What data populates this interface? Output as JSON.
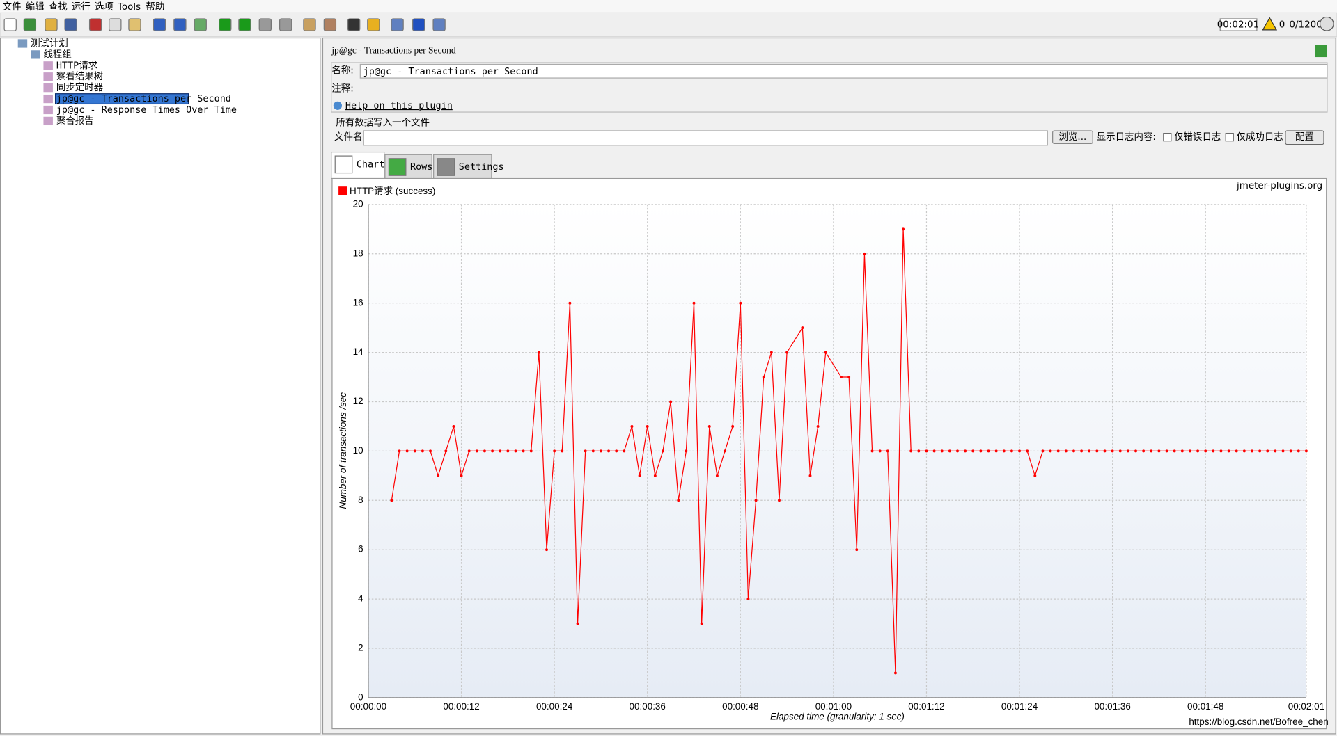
{
  "menu": [
    "文件",
    "编辑",
    "查找",
    "运行",
    "选项",
    "Tools",
    "帮助"
  ],
  "status": {
    "timer": "00:02:01",
    "warnings": "0",
    "threads": "0/1200"
  },
  "tree": [
    "测试计划",
    "线程组",
    "HTTP请求",
    "察看结果树",
    "同步定时器",
    "jp@gc - Transactions per Second",
    "jp@gc - Response Times Over Time",
    "聚合报告"
  ],
  "panel": {
    "title": "jp@gc - Transactions per Second",
    "name_label": "名称:",
    "name_value": "jp@gc - Transactions per Second",
    "comment_label": "注释:",
    "help_link": "Help on this plugin",
    "file_section": "所有数据写入一个文件",
    "file_label": "文件名",
    "browse": "浏览...",
    "log_label": "显示日志内容:",
    "errors_only": "仅错误日志",
    "success_only": "仅成功日志",
    "configure": "配置",
    "tabs": [
      "Chart",
      "Rows",
      "Settings"
    ]
  },
  "chart": {
    "type": "line",
    "watermark": "jmeter-plugins.org",
    "y_label": "Number of transactions /sec",
    "x_label": "Elapsed time (granularity: 1 sec)",
    "x": [
      3,
      4,
      5,
      6,
      7,
      8,
      9,
      10,
      11,
      12,
      13,
      14,
      15,
      16,
      17,
      18,
      19,
      20,
      21,
      22,
      23,
      24,
      25,
      26,
      27,
      28,
      29,
      30,
      31,
      32,
      33,
      34,
      35,
      36,
      37,
      38,
      39,
      40,
      41,
      42,
      43,
      44,
      45,
      46,
      47,
      48,
      49,
      50,
      51,
      52,
      53,
      54,
      56,
      57,
      58,
      59,
      61,
      62,
      63,
      64,
      65,
      66,
      67,
      68,
      69,
      70,
      71,
      72,
      73,
      74,
      75,
      76,
      77,
      78,
      79,
      80,
      81,
      82,
      83,
      84,
      85,
      86,
      87,
      88,
      89,
      90,
      91,
      92,
      93,
      94,
      95,
      96,
      97,
      98,
      99,
      100,
      101,
      102,
      103,
      104,
      105,
      106,
      107,
      108,
      109,
      110,
      111,
      112,
      113,
      114,
      115,
      116,
      117,
      118,
      119,
      120,
      121
    ],
    "series": [
      {
        "name": "HTTP请求 (success)",
        "color": "#ff0000",
        "values": [
          8,
          10,
          10,
          10,
          10,
          10,
          9,
          10,
          11,
          9,
          10,
          10,
          10,
          10,
          10,
          10,
          10,
          10,
          10,
          14,
          6,
          10,
          10,
          16,
          3,
          10,
          10,
          10,
          10,
          10,
          10,
          11,
          9,
          11,
          9,
          10,
          12,
          8,
          10,
          16,
          3,
          11,
          9,
          10,
          11,
          16,
          4,
          8,
          13,
          14,
          8,
          14,
          15,
          9,
          11,
          14,
          13,
          13,
          6,
          18,
          10,
          10,
          10,
          1,
          19,
          10,
          10,
          10,
          10,
          10,
          10,
          10,
          10,
          10,
          10,
          10,
          10,
          10,
          10,
          10,
          10,
          9,
          10,
          10,
          10,
          10,
          10,
          10,
          10,
          10,
          10,
          10,
          10,
          10,
          10,
          10,
          10,
          10,
          10,
          10,
          10,
          10,
          10,
          10,
          10,
          10,
          10,
          10,
          10,
          10,
          10,
          10,
          10,
          10,
          10,
          10,
          10
        ]
      }
    ],
    "xlim": [
      0,
      121
    ],
    "xticks": [
      {
        "value": 0,
        "label": "00:00:00"
      },
      {
        "value": 12,
        "label": "00:00:12"
      },
      {
        "value": 24,
        "label": "00:00:24"
      },
      {
        "value": 36,
        "label": "00:00:36"
      },
      {
        "value": 48,
        "label": "00:00:48"
      },
      {
        "value": 60,
        "label": "00:01:00"
      },
      {
        "value": 72,
        "label": "00:01:12"
      },
      {
        "value": 84,
        "label": "00:01:24"
      },
      {
        "value": 96,
        "label": "00:01:36"
      },
      {
        "value": 108,
        "label": "00:01:48"
      },
      {
        "value": 121,
        "label": "00:02:01"
      }
    ],
    "ylim": [
      0,
      20
    ],
    "yticks": [
      0,
      2,
      4,
      6,
      8,
      10,
      12,
      14,
      16,
      18,
      20
    ],
    "grid": true
  },
  "watermark": "https://blog.csdn.net/Bofree_chen"
}
